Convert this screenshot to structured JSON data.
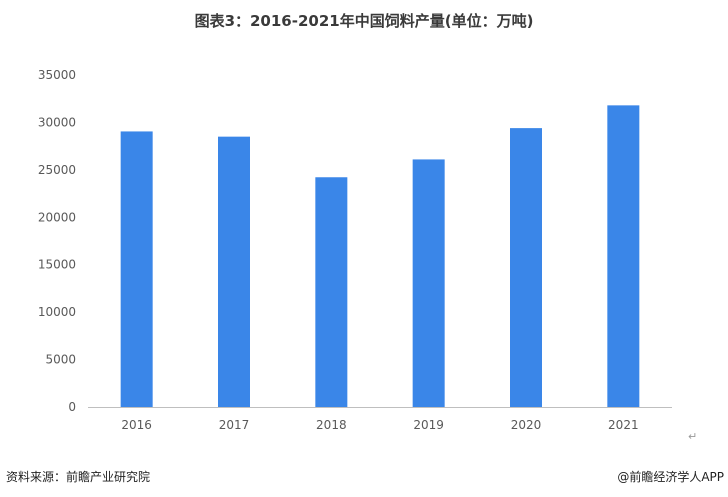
{
  "title": "图表3：2016-2021年中国饲料产量(单位：万吨)",
  "footer": {
    "source": "资料来源：前瞻产业研究院",
    "brand": "@前瞻经济学人APP"
  },
  "return_mark": "↵",
  "colors": {
    "bar": "#3a86e8",
    "axis": "#bfbfbf",
    "tick_text": "#595959"
  },
  "chart_data": {
    "type": "bar",
    "categories": [
      "2016",
      "2017",
      "2018",
      "2019",
      "2020",
      "2021"
    ],
    "values": [
      29050,
      28500,
      24220,
      26100,
      29400,
      31800
    ],
    "ylim": [
      0,
      35000
    ],
    "yticks": [
      0,
      5000,
      10000,
      15000,
      20000,
      25000,
      30000,
      35000
    ],
    "grid": false,
    "title": "",
    "xlabel": "",
    "ylabel": ""
  }
}
